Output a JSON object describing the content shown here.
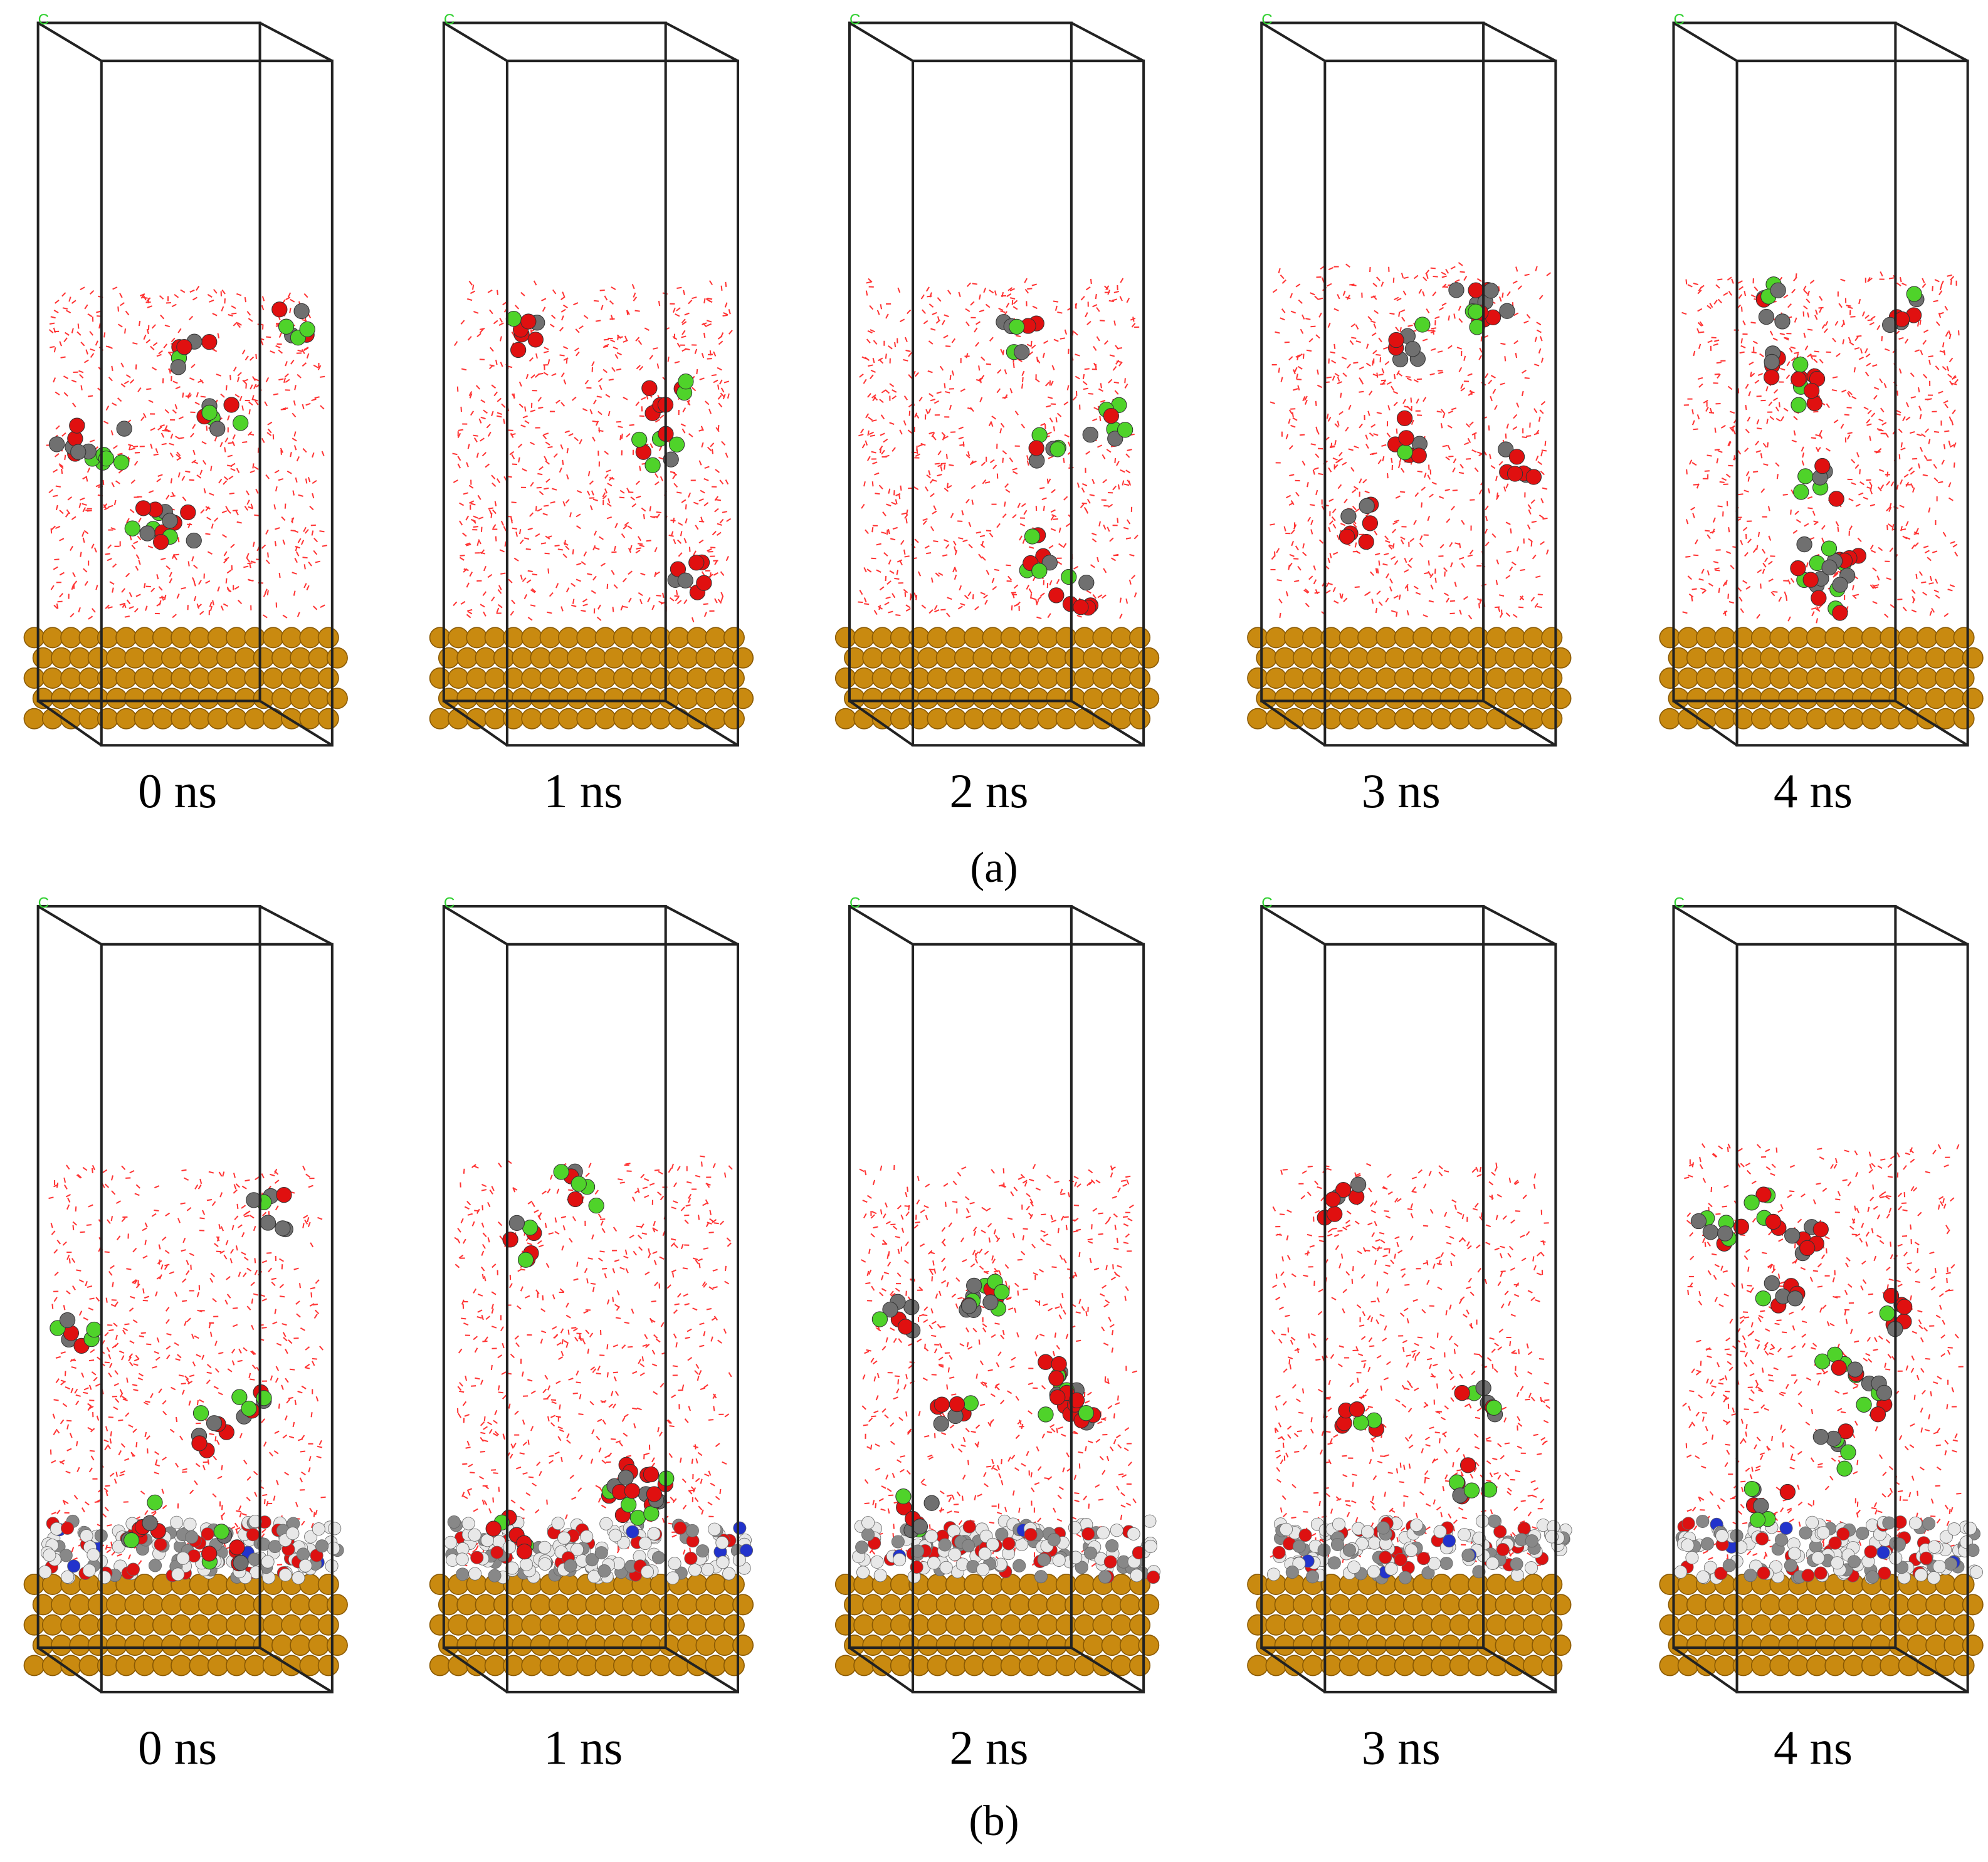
{
  "corner_axis": "C",
  "panels": [
    {
      "label": "(a)",
      "frames": [
        "0 ns",
        "1 ns",
        "2 ns",
        "3 ns",
        "4 ns"
      ]
    },
    {
      "label": "(b)",
      "frames": [
        "0 ns",
        "1 ns",
        "2 ns",
        "3 ns",
        "4 ns"
      ]
    }
  ]
}
